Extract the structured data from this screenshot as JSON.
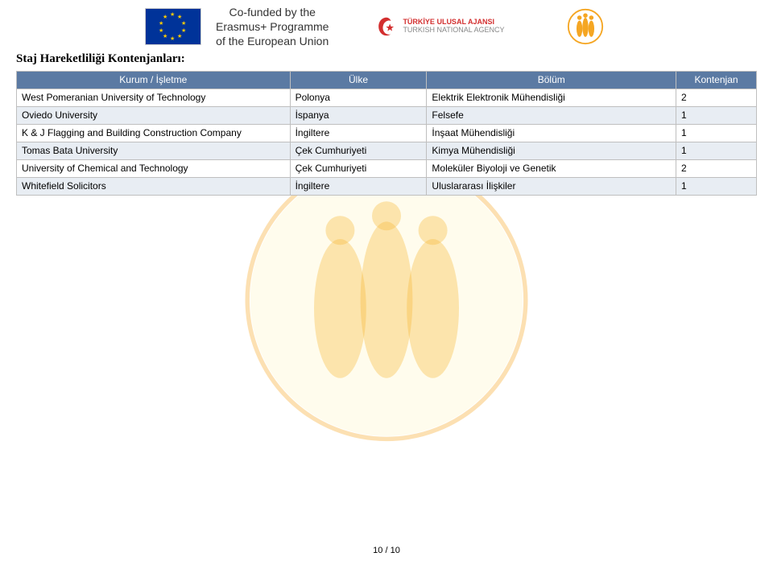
{
  "cofund": {
    "line1": "Co-funded by the",
    "line2": "Erasmus+ Programme",
    "line3": "of the European Union"
  },
  "tna": {
    "line1": "TÜRKİYE ULUSAL AJANSI",
    "line2": "TURKISH NATIONAL AGENCY"
  },
  "section_title": "Staj Hareketliliği Kontenjanları:",
  "table": {
    "headers": {
      "kurum": "Kurum / İşletme",
      "ulke": "Ülke",
      "bolum": "Bölüm",
      "kontenjan": "Kontenjan"
    },
    "rows": [
      {
        "kurum": "West Pomeranian University of Technology",
        "ulke": "Polonya",
        "bolum": "Elektrik Elektronik Mühendisliği",
        "kont": "2"
      },
      {
        "kurum": "Oviedo University",
        "ulke": "İspanya",
        "bolum": "Felsefe",
        "kont": "1"
      },
      {
        "kurum": "K & J Flagging and Building Construction Company",
        "ulke": "İngiltere",
        "bolum": "İnşaat Mühendisliği",
        "kont": "1"
      },
      {
        "kurum": "Tomas Bata University",
        "ulke": "Çek Cumhuriyeti",
        "bolum": "Kimya Mühendisliği",
        "kont": "1"
      },
      {
        "kurum": "University of Chemical and Technology",
        "ulke": "Çek Cumhuriyeti",
        "bolum": "Moleküler Biyoloji ve Genetik",
        "kont": "2"
      },
      {
        "kurum": "Whitefield Solicitors",
        "ulke": "İngiltere",
        "bolum": "Uluslararası İlişkiler",
        "kont": "1"
      }
    ]
  },
  "footer": "10 / 10",
  "colors": {
    "header_bg": "#5b7aa3",
    "row_alt": "#e8edf3",
    "border": "#bfbfbf",
    "watermark_yellow": "#fff3c4",
    "watermark_orange": "#f5a623",
    "eu_blue": "#003399",
    "eu_gold": "#ffcc00"
  }
}
